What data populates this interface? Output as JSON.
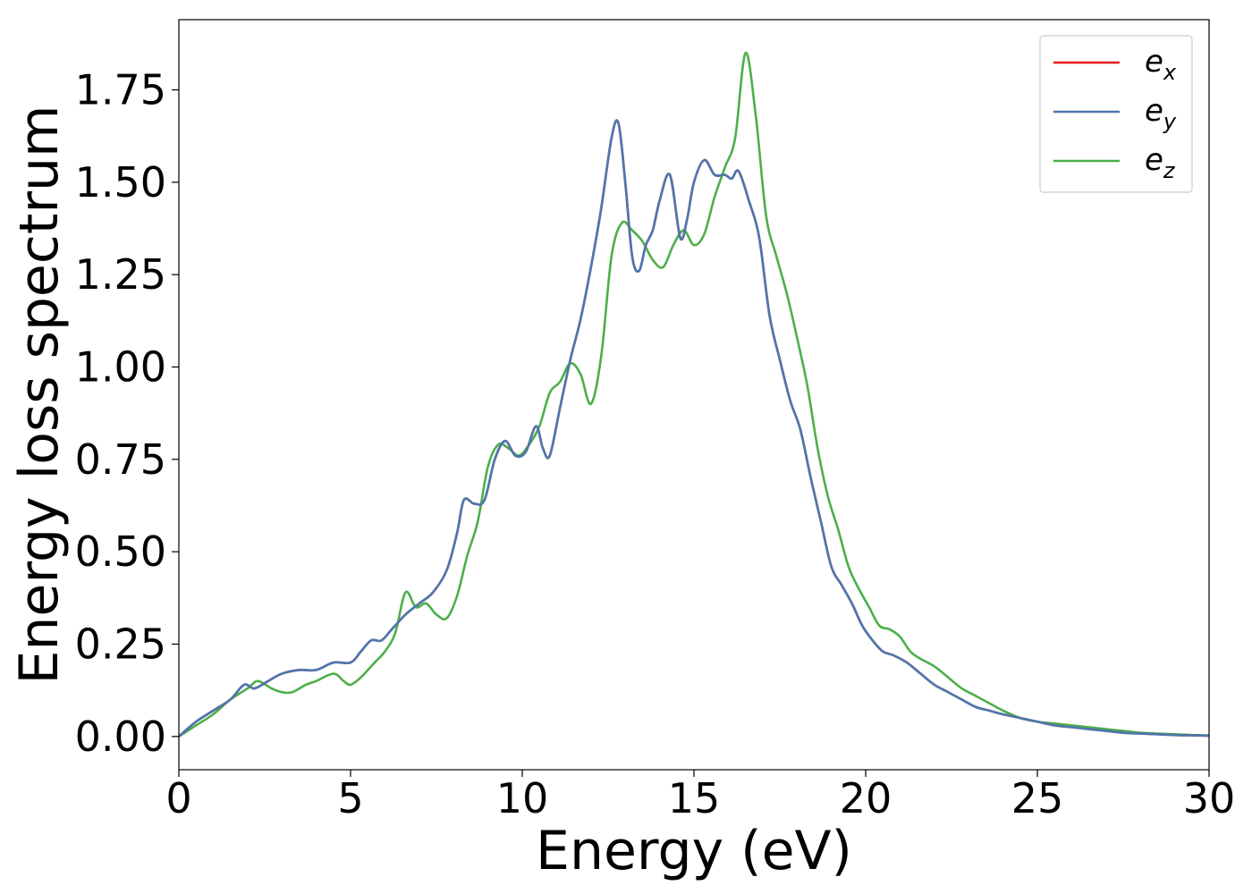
{
  "chart_data": {
    "type": "line",
    "title": "",
    "xlabel": "Energy (eV)",
    "ylabel": "Energy loss spectrum",
    "xlim": [
      0,
      30
    ],
    "ylim": [
      -0.09,
      1.94
    ],
    "xticks": [
      0,
      5,
      10,
      15,
      20,
      25,
      30
    ],
    "xtick_labels": [
      "0",
      "5",
      "10",
      "15",
      "20",
      "25",
      "30"
    ],
    "yticks": [
      0,
      0.25,
      0.5,
      0.75,
      1.0,
      1.25,
      1.5,
      1.75
    ],
    "ytick_labels": [
      "0.00",
      "0.25",
      "0.50",
      "0.75",
      "1.00",
      "1.25",
      "1.50",
      "1.75"
    ],
    "grid": false,
    "legend_position": "top-right",
    "series": [
      {
        "name": "e_x",
        "legend_base": "e",
        "legend_sub": "x",
        "color": "#e41a1c",
        "x": [
          0,
          0.5,
          1,
          1.5,
          1.9,
          2.2,
          2.6,
          3,
          3.5,
          4,
          4.5,
          5,
          5.3,
          5.6,
          5.9,
          6.2,
          6.6,
          7,
          7.4,
          7.8,
          8.1,
          8.3,
          8.6,
          8.9,
          9.2,
          9.5,
          9.8,
          10.1,
          10.4,
          10.6,
          10.8,
          11.1,
          11.4,
          11.7,
          12,
          12.3,
          12.6,
          12.8,
          13,
          13.2,
          13.4,
          13.6,
          13.8,
          14,
          14.3,
          14.6,
          14.8,
          15,
          15.3,
          15.6,
          15.9,
          16.1,
          16.3,
          16.6,
          16.9,
          17.2,
          17.5,
          17.8,
          18.1,
          18.4,
          18.7,
          19,
          19.3,
          19.6,
          19.9,
          20.2,
          20.5,
          20.8,
          21.2,
          21.6,
          22,
          22.4,
          22.8,
          23.2,
          23.6,
          24,
          24.5,
          25,
          25.5,
          26,
          26.5,
          27,
          27.5,
          28,
          28.5,
          29,
          29.5,
          30
        ],
        "y": [
          0,
          0.04,
          0.07,
          0.1,
          0.14,
          0.13,
          0.15,
          0.17,
          0.18,
          0.18,
          0.2,
          0.2,
          0.23,
          0.26,
          0.26,
          0.29,
          0.33,
          0.36,
          0.39,
          0.45,
          0.55,
          0.64,
          0.63,
          0.64,
          0.75,
          0.8,
          0.76,
          0.77,
          0.84,
          0.78,
          0.76,
          0.89,
          1.02,
          1.13,
          1.27,
          1.43,
          1.62,
          1.66,
          1.5,
          1.3,
          1.26,
          1.33,
          1.37,
          1.45,
          1.52,
          1.35,
          1.4,
          1.5,
          1.56,
          1.52,
          1.52,
          1.51,
          1.53,
          1.45,
          1.35,
          1.14,
          1.02,
          0.91,
          0.83,
          0.7,
          0.58,
          0.46,
          0.41,
          0.36,
          0.3,
          0.26,
          0.23,
          0.22,
          0.2,
          0.17,
          0.14,
          0.12,
          0.1,
          0.08,
          0.07,
          0.06,
          0.05,
          0.04,
          0.03,
          0.025,
          0.02,
          0.015,
          0.01,
          0.008,
          0.006,
          0.004,
          0.003,
          0.002
        ]
      },
      {
        "name": "e_y",
        "legend_base": "e",
        "legend_sub": "y",
        "color": "#4a78b0",
        "x": [
          0,
          0.5,
          1,
          1.5,
          1.9,
          2.2,
          2.6,
          3,
          3.5,
          4,
          4.5,
          5,
          5.3,
          5.6,
          5.9,
          6.2,
          6.6,
          7,
          7.4,
          7.8,
          8.1,
          8.3,
          8.6,
          8.9,
          9.2,
          9.5,
          9.8,
          10.1,
          10.4,
          10.6,
          10.8,
          11.1,
          11.4,
          11.7,
          12,
          12.3,
          12.6,
          12.8,
          13,
          13.2,
          13.4,
          13.6,
          13.8,
          14,
          14.3,
          14.6,
          14.8,
          15,
          15.3,
          15.6,
          15.9,
          16.1,
          16.3,
          16.6,
          16.9,
          17.2,
          17.5,
          17.8,
          18.1,
          18.4,
          18.7,
          19,
          19.3,
          19.6,
          19.9,
          20.2,
          20.5,
          20.8,
          21.2,
          21.6,
          22,
          22.4,
          22.8,
          23.2,
          23.6,
          24,
          24.5,
          25,
          25.5,
          26,
          26.5,
          27,
          27.5,
          28,
          28.5,
          29,
          29.5,
          30
        ],
        "y": [
          0,
          0.04,
          0.07,
          0.1,
          0.14,
          0.13,
          0.15,
          0.17,
          0.18,
          0.18,
          0.2,
          0.2,
          0.23,
          0.26,
          0.26,
          0.29,
          0.33,
          0.36,
          0.39,
          0.45,
          0.55,
          0.64,
          0.63,
          0.64,
          0.75,
          0.8,
          0.76,
          0.77,
          0.84,
          0.78,
          0.76,
          0.89,
          1.02,
          1.13,
          1.27,
          1.43,
          1.62,
          1.66,
          1.5,
          1.3,
          1.26,
          1.33,
          1.37,
          1.45,
          1.52,
          1.35,
          1.4,
          1.5,
          1.56,
          1.52,
          1.52,
          1.51,
          1.53,
          1.45,
          1.35,
          1.14,
          1.02,
          0.91,
          0.83,
          0.7,
          0.58,
          0.46,
          0.41,
          0.36,
          0.3,
          0.26,
          0.23,
          0.22,
          0.2,
          0.17,
          0.14,
          0.12,
          0.1,
          0.08,
          0.07,
          0.06,
          0.05,
          0.04,
          0.03,
          0.025,
          0.02,
          0.015,
          0.01,
          0.008,
          0.006,
          0.004,
          0.003,
          0.002
        ]
      },
      {
        "name": "e_z",
        "legend_base": "e",
        "legend_sub": "z",
        "color": "#4daf4a",
        "x": [
          0,
          0.5,
          1,
          1.5,
          2,
          2.3,
          2.7,
          3,
          3.3,
          3.7,
          4,
          4.5,
          4.8,
          5,
          5.3,
          5.7,
          6,
          6.3,
          6.6,
          6.9,
          7.2,
          7.5,
          7.8,
          8.1,
          8.4,
          8.7,
          9,
          9.3,
          9.6,
          9.9,
          10.2,
          10.5,
          10.8,
          11.1,
          11.4,
          11.7,
          12,
          12.3,
          12.6,
          12.9,
          13.2,
          13.5,
          13.8,
          14.1,
          14.4,
          14.7,
          15,
          15.3,
          15.6,
          15.9,
          16.2,
          16.5,
          16.8,
          17.1,
          17.4,
          17.7,
          18,
          18.3,
          18.6,
          18.9,
          19.2,
          19.5,
          19.8,
          20.1,
          20.4,
          20.7,
          21,
          21.3,
          21.6,
          22,
          22.4,
          22.8,
          23.2,
          23.6,
          24,
          24.5,
          25,
          25.5,
          26,
          26.5,
          27,
          27.5,
          28,
          28.5,
          29,
          29.5,
          30
        ],
        "y": [
          0,
          0.03,
          0.06,
          0.1,
          0.13,
          0.15,
          0.13,
          0.12,
          0.12,
          0.14,
          0.15,
          0.17,
          0.15,
          0.14,
          0.16,
          0.2,
          0.23,
          0.28,
          0.39,
          0.35,
          0.36,
          0.33,
          0.32,
          0.38,
          0.49,
          0.58,
          0.73,
          0.79,
          0.78,
          0.76,
          0.79,
          0.84,
          0.93,
          0.96,
          1.01,
          0.98,
          0.9,
          1.03,
          1.3,
          1.39,
          1.37,
          1.34,
          1.29,
          1.27,
          1.33,
          1.37,
          1.33,
          1.36,
          1.46,
          1.54,
          1.62,
          1.85,
          1.68,
          1.41,
          1.3,
          1.2,
          1.08,
          0.95,
          0.78,
          0.65,
          0.56,
          0.46,
          0.4,
          0.35,
          0.3,
          0.29,
          0.27,
          0.23,
          0.21,
          0.19,
          0.16,
          0.13,
          0.11,
          0.09,
          0.07,
          0.05,
          0.04,
          0.035,
          0.03,
          0.025,
          0.02,
          0.015,
          0.01,
          0.008,
          0.006,
          0.004,
          0.003
        ]
      }
    ]
  }
}
